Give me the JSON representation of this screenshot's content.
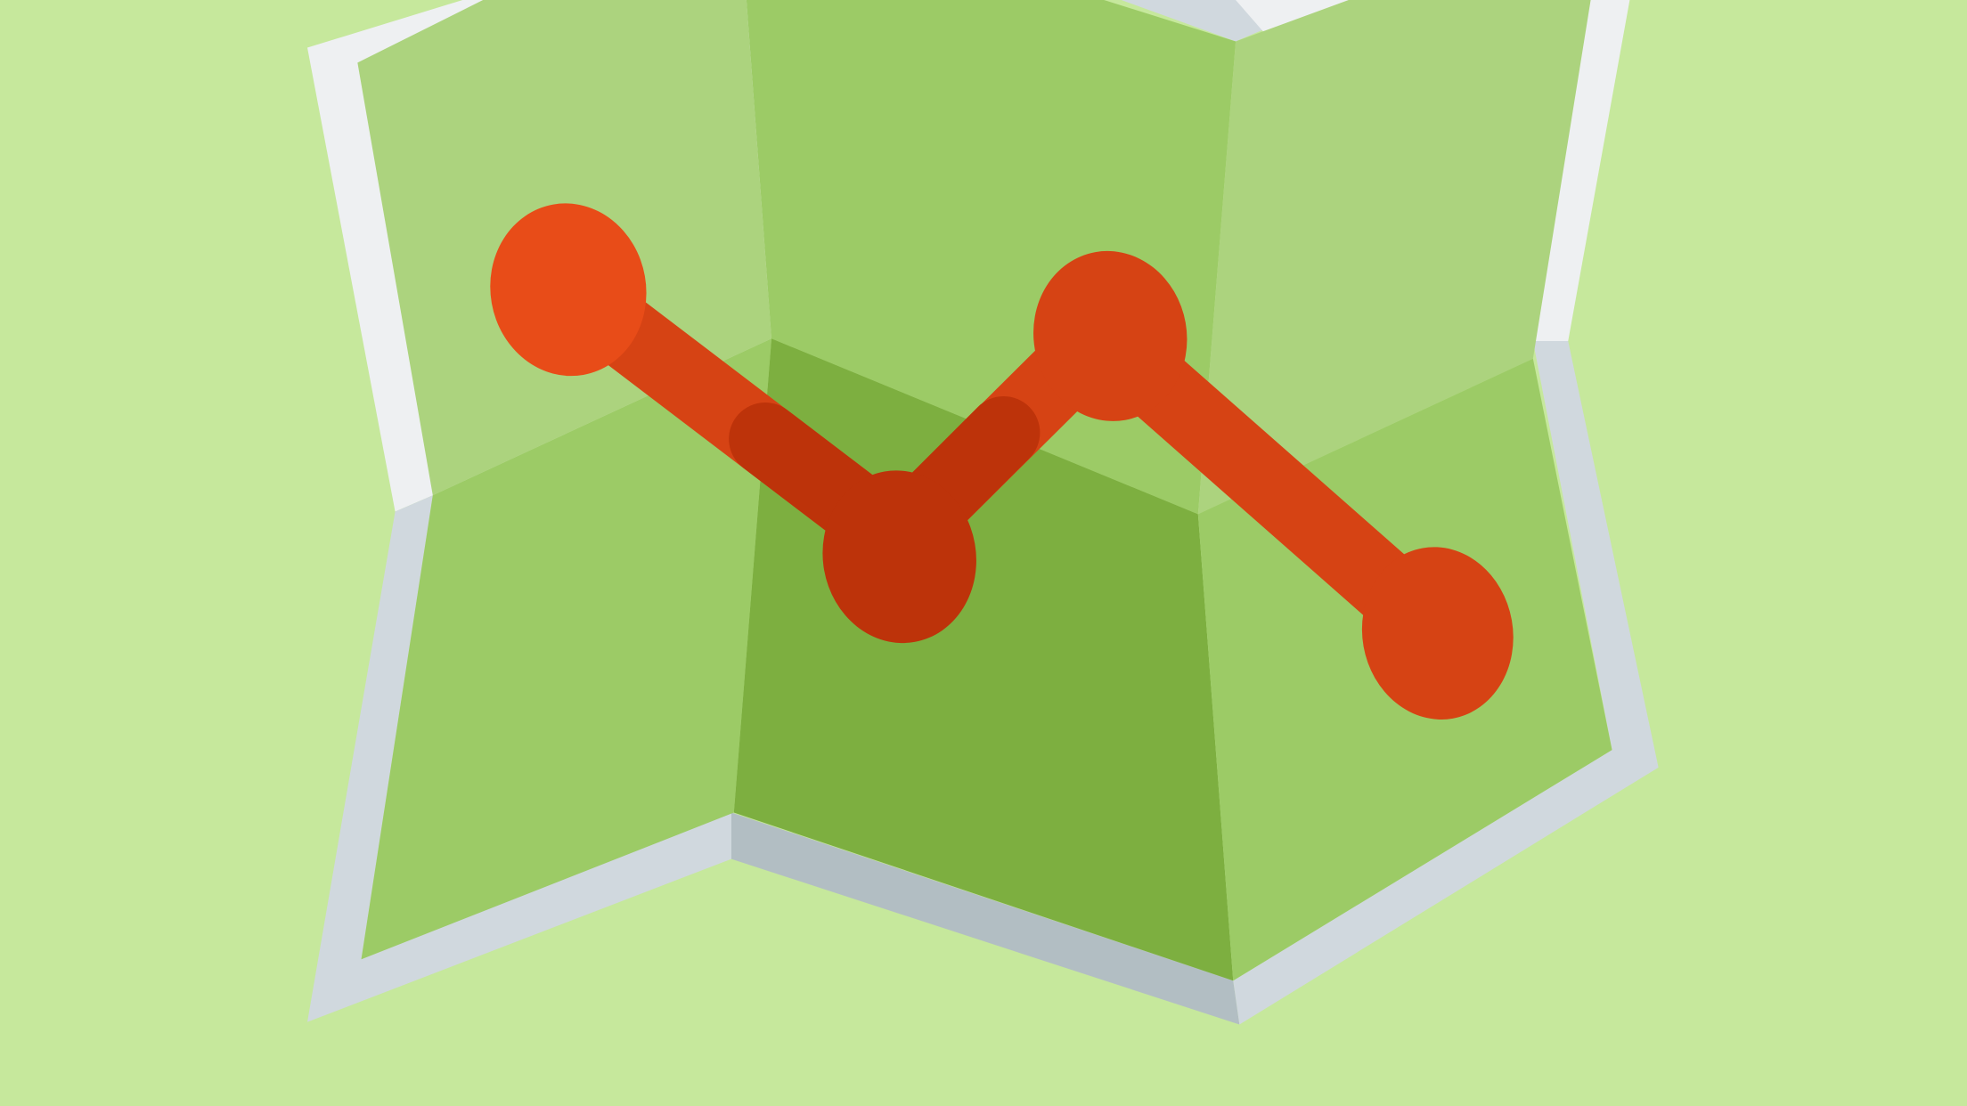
{
  "colors": {
    "background": "#c6e89c",
    "map_light": "#acd37e",
    "map_mid": "#9ccb66",
    "map_dark": "#7daf40",
    "border_light": "#eef0f2",
    "border_mid": "#d0d8de",
    "border_dark": "#b2bec3",
    "route_bright": "#e84c18",
    "route_mid": "#d64314",
    "route_dark": "#bd330a"
  },
  "icon": {
    "name": "folded-map-route-icon"
  }
}
